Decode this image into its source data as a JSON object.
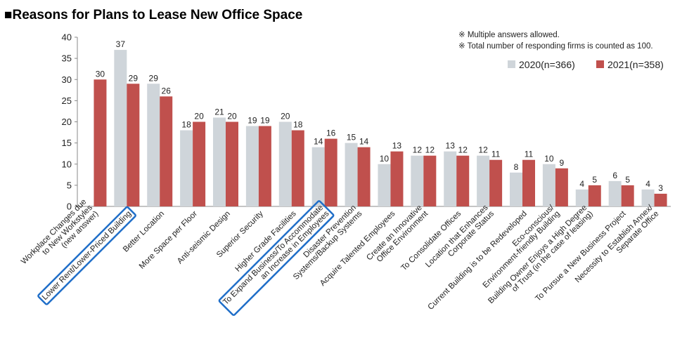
{
  "chart_data": {
    "type": "bar",
    "title": "■Reasons for Plans to Lease New Office Space",
    "notes": [
      "※ Multiple answers allowed.",
      "※ Total number of responding firms is counted as 100."
    ],
    "ylim": [
      0,
      40
    ],
    "yticks": [
      0,
      5,
      10,
      15,
      20,
      25,
      30,
      35,
      40
    ],
    "grid": false,
    "legend_position": "top-right",
    "categories": [
      [
        "Workplace Changes due",
        "to New Workstyles",
        "(new answer)"
      ],
      [
        "Lower Rent/Lower-Priced Building"
      ],
      [
        "Better Location"
      ],
      [
        "More Space per Floor"
      ],
      [
        "Anti-seismic Design"
      ],
      [
        "Superior Security"
      ],
      [
        "Higher Grade Facilities"
      ],
      [
        "To Expand Business/To Accommodate",
        "an Increase in Employees"
      ],
      [
        "Disaster Prevention",
        "Systems/Backup Systems"
      ],
      [
        "Acquire Talented Employees"
      ],
      [
        "Create an Innovative",
        "Office Environment"
      ],
      [
        "To Consolidate Offices"
      ],
      [
        "Location that Enhances",
        "Corporate Status"
      ],
      [
        "Current Building is to be Redeveloped"
      ],
      [
        "Eco-conscious/",
        "Environment-friendly Building"
      ],
      [
        "Building Owner Enjoys a High Degree",
        "of Trust (in the case of leasing)"
      ],
      [
        "To Pursue a New Business Project"
      ],
      [
        "Necessity to Establish Annex/",
        "Separate Office"
      ]
    ],
    "highlighted": [
      1,
      7
    ],
    "series": [
      {
        "name": "2020(n=366)",
        "color": "#cfd5da",
        "values": [
          null,
          37,
          29,
          18,
          21,
          19,
          20,
          14,
          15,
          10,
          12,
          13,
          12,
          8,
          10,
          4,
          6,
          4
        ]
      },
      {
        "name": "2021(n=358)",
        "color": "#c0504d",
        "values": [
          30,
          29,
          26,
          20,
          20,
          19,
          18,
          16,
          14,
          13,
          12,
          12,
          11,
          11,
          9,
          5,
          5,
          3
        ]
      }
    ]
  }
}
